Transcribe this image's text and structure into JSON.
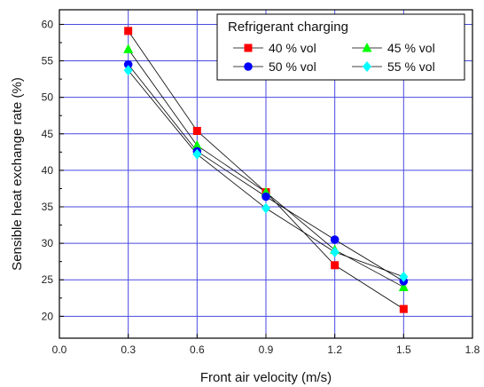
{
  "chart_data": {
    "type": "line",
    "title": "",
    "xlabel": "Front air velocity (m/s)",
    "ylabel": "Sensible heat exchange rate (%)",
    "xlim": [
      0.0,
      1.8
    ],
    "ylim": [
      17,
      62
    ],
    "x_ticks": [
      "0.0",
      "0.3",
      "0.6",
      "0.9",
      "1.2",
      "1.5",
      "1.8"
    ],
    "y_ticks": [
      "20",
      "25",
      "30",
      "35",
      "40",
      "45",
      "50",
      "55",
      "60"
    ],
    "grid": true,
    "legend": {
      "title": "Refrigerant charging",
      "placement": "top-right"
    },
    "x": [
      0.3,
      0.6,
      0.9,
      1.2,
      1.5
    ],
    "series": [
      {
        "name": "40 % vol",
        "values": [
          59.1,
          45.4,
          37.0,
          27.0,
          21.0
        ],
        "color": "#ff0000",
        "marker": "square"
      },
      {
        "name": "45 % vol",
        "values": [
          56.6,
          43.4,
          37.0,
          29.1,
          24.0
        ],
        "color": "#00ff00",
        "marker": "triangle"
      },
      {
        "name": "50 % vol",
        "values": [
          54.5,
          42.6,
          36.4,
          30.5,
          24.8
        ],
        "color": "#0000ff",
        "marker": "circle"
      },
      {
        "name": "55 % vol",
        "values": [
          53.7,
          42.2,
          34.8,
          28.8,
          25.4
        ],
        "color": "#00ffff",
        "marker": "diamond"
      }
    ]
  }
}
